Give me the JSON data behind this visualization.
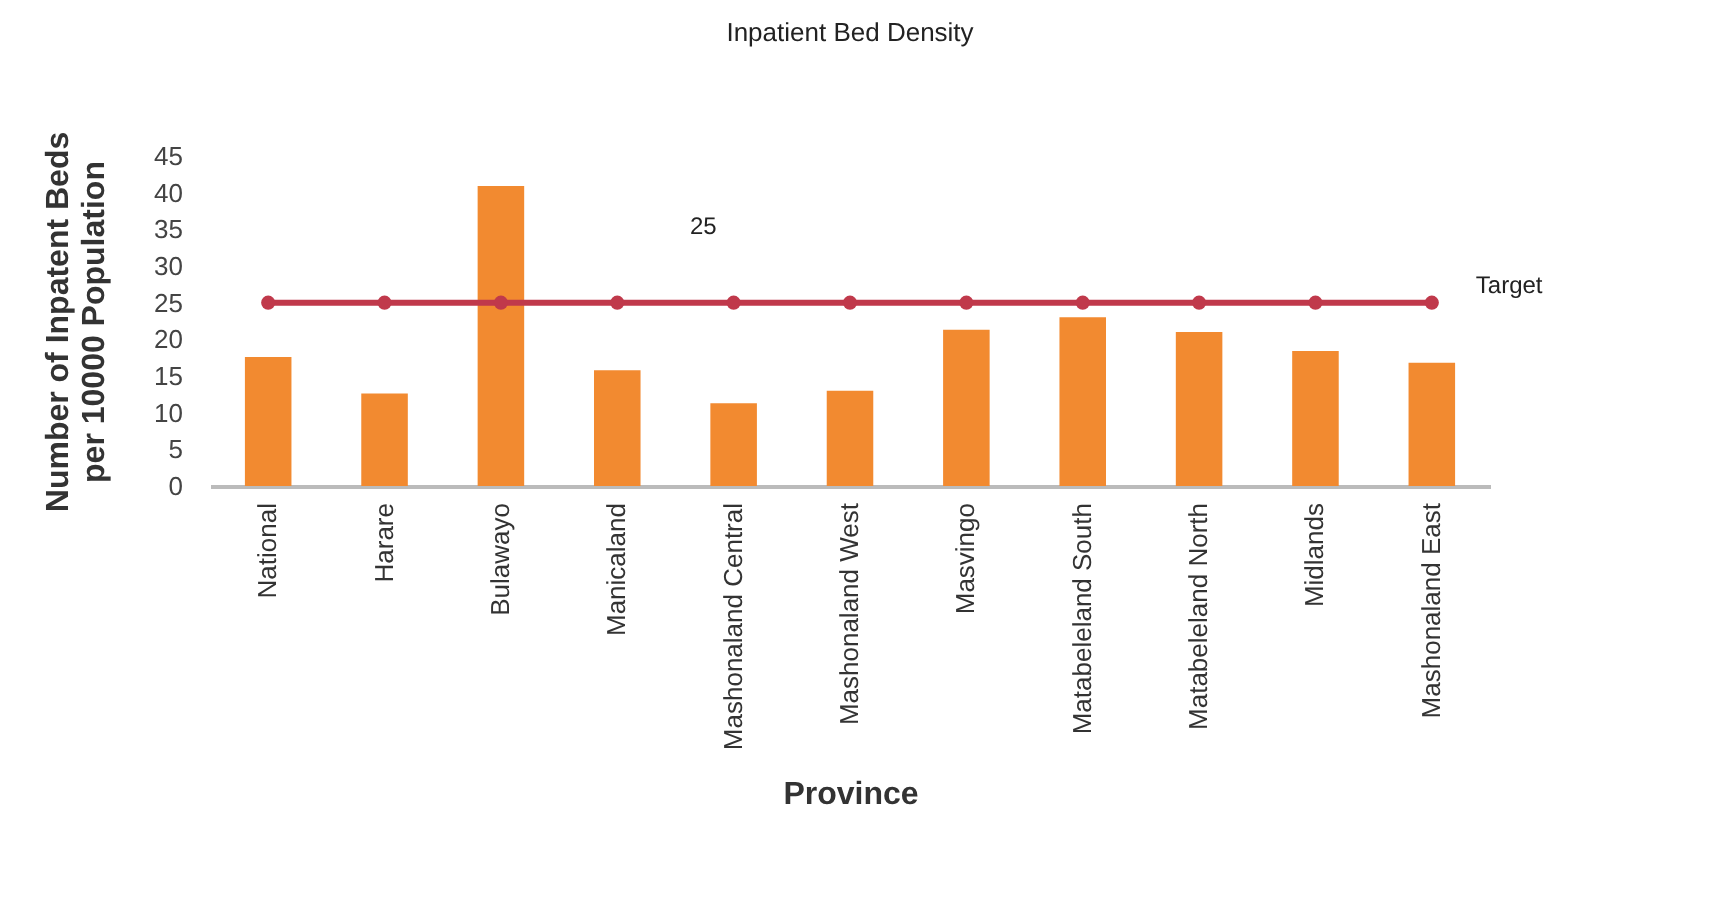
{
  "chart_data": {
    "type": "bar",
    "title": "Inpatient Bed Density",
    "xlabel": "Province",
    "ylabel": "Number of Inpatent Beds per 10000 Population",
    "categories": [
      "National",
      "Harare",
      "Bulawayo",
      "Manicaland",
      "Mashonaland Central",
      "Mashonaland West",
      "Masvingo",
      "Matabeleland South",
      "Matabeleland North",
      "Midlands",
      "Mashonaland East"
    ],
    "series": [
      {
        "color": "#f28a30",
        "values": [
          17.6,
          12.6,
          40.9,
          15.8,
          11.3,
          13.0,
          21.3,
          23.0,
          21.0,
          18.4,
          16.8
        ]
      },
      {
        "name": "Target",
        "type": "line",
        "color": "#c0394b",
        "values": [
          25,
          25,
          25,
          25,
          25,
          25,
          25,
          25,
          25,
          25,
          25
        ]
      }
    ],
    "annotations": [
      "25"
    ],
    "ylim": [
      0,
      45
    ],
    "yticks": [
      0,
      5,
      10,
      15,
      20,
      25,
      30,
      35,
      40,
      45
    ],
    "grid": false,
    "marker": "circle",
    "line_style": "solid"
  }
}
